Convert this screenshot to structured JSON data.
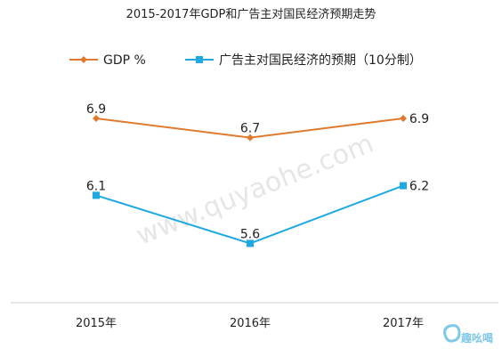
{
  "chart_data": {
    "type": "line",
    "title": "2015-2017年GDP和广告主对国民经济预期走势",
    "categories": [
      "2015年",
      "2016年",
      "2017年"
    ],
    "series": [
      {
        "name": "GDP %",
        "values": [
          6.9,
          6.7,
          6.9
        ],
        "color": "#e07a2e",
        "marker": "diamond"
      },
      {
        "name": "广告主对国民经济的预期（10分制）",
        "values": [
          6.1,
          5.6,
          6.2
        ],
        "color": "#1fa9e0",
        "marker": "square"
      }
    ],
    "legend_position": "top",
    "grid": false,
    "xlabel": "",
    "ylabel": ""
  },
  "watermark": "www.quyaohe.com",
  "logo": {
    "text": "趣吆喝",
    "color": "#7fc8e8"
  }
}
